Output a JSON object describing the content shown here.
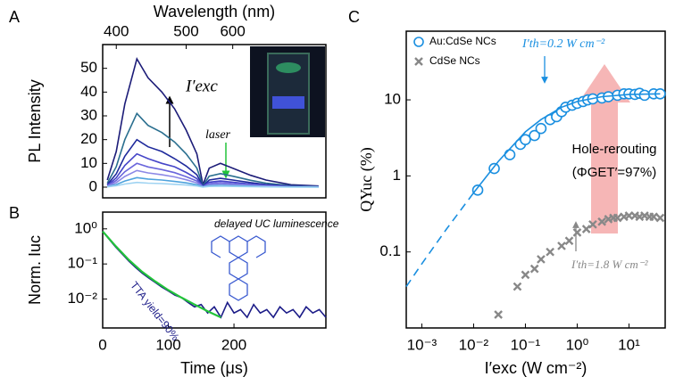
{
  "chart_data": [
    {
      "type": "line",
      "panel_label": "A",
      "xlabel": "Wavelength (nm)",
      "ylabel": "PL Intensity",
      "xscale": "reciprocal",
      "xlim": [
        385,
        1000
      ],
      "xticks": [
        400,
        500,
        600
      ],
      "ylim": [
        -4.5,
        60
      ],
      "yticks": [
        0,
        10,
        20,
        30,
        40,
        50
      ],
      "x": [
        390,
        400,
        410,
        425,
        440,
        460,
        480,
        500,
        520,
        532,
        545,
        570,
        600,
        650,
        700,
        800,
        950
      ],
      "series": [
        {
          "color": "#1c1c78",
          "values": [
            3,
            15,
            35,
            54,
            46,
            40,
            33,
            24,
            14,
            1,
            8,
            10,
            8,
            5,
            3,
            1,
            0.5
          ]
        },
        {
          "color": "#2a6f8f",
          "values": [
            1.7,
            8.6,
            20,
            31,
            26,
            23,
            19,
            14,
            8,
            0.6,
            4.6,
            5.7,
            4.6,
            2.9,
            1.7,
            0.6,
            0.3
          ]
        },
        {
          "color": "#1f2a9c",
          "values": [
            1.1,
            5.6,
            13,
            20,
            17,
            15,
            12,
            8.9,
            5.2,
            0.4,
            3,
            3.7,
            3,
            1.9,
            1.1,
            0.4,
            0.2
          ]
        },
        {
          "color": "#4545c8",
          "values": [
            0.8,
            3.9,
            9.1,
            14,
            12,
            10,
            8.6,
            6.2,
            3.6,
            0.3,
            2.1,
            2.6,
            2.1,
            1.3,
            0.8,
            0.3,
            0.1
          ]
        },
        {
          "color": "#6a66dc",
          "values": [
            0.6,
            2.8,
            6.5,
            10,
            8.5,
            7.4,
            6.1,
            4.4,
            2.6,
            0.2,
            1.5,
            1.9,
            1.5,
            0.9,
            0.6,
            0.2,
            0.1
          ]
        },
        {
          "color": "#8c88e6",
          "values": [
            0.4,
            1.9,
            4.5,
            7,
            6,
            5.2,
            4.3,
            3.1,
            1.8,
            0.1,
            1,
            1.3,
            1,
            0.7,
            0.4,
            0.1,
            0.1
          ]
        },
        {
          "color": "#4fa3dd",
          "values": [
            0.2,
            1.1,
            2.6,
            4,
            3.4,
            3,
            2.4,
            1.8,
            1,
            0.1,
            0.6,
            0.7,
            0.6,
            0.4,
            0.2,
            0.1,
            0
          ]
        },
        {
          "color": "#9fd3f2",
          "values": [
            0.1,
            0.6,
            1.3,
            2,
            1.7,
            1.5,
            1.2,
            0.9,
            0.5,
            0,
            0.3,
            0.4,
            0.3,
            0.2,
            0.1,
            0,
            0
          ]
        }
      ],
      "annotations": [
        {
          "text": "I′exc"
        },
        {
          "text": "laser"
        }
      ]
    },
    {
      "type": "line",
      "panel_label": "B",
      "xlabel": "Time (μs)",
      "ylabel": "Norm. Iuc",
      "yscale": "log",
      "xlim": [
        0,
        340
      ],
      "xticks": [
        0,
        100,
        200
      ],
      "ylim": [
        0.0015,
        3
      ],
      "yticks": [
        {
          "value": 1,
          "label": "10⁰"
        },
        {
          "value": 0.1,
          "label": "10⁻¹"
        },
        {
          "value": 0.01,
          "label": "10⁻²"
        }
      ],
      "series": [
        {
          "color": "#1c1c88",
          "x": [
            0,
            10,
            20,
            30,
            40,
            50,
            60,
            70,
            80,
            90,
            100,
            110,
            120,
            130,
            140,
            150,
            160,
            170,
            180,
            190,
            200,
            210,
            220,
            230,
            240,
            250,
            260,
            270,
            280,
            290,
            300,
            310,
            320,
            330,
            340
          ],
          "values": [
            0.85,
            0.5,
            0.3,
            0.19,
            0.12,
            0.08,
            0.055,
            0.04,
            0.03,
            0.022,
            0.017,
            0.013,
            0.011,
            0.008,
            0.006,
            0.007,
            0.004,
            0.006,
            0.003,
            0.008,
            0.004,
            0.005,
            0.003,
            0.007,
            0.004,
            0.005,
            0.003,
            0.006,
            0.004,
            0.005,
            0.003,
            0.006,
            0.004,
            0.005,
            0.003
          ]
        },
        {
          "color": "#22c33a",
          "x": [
            0,
            20,
            40,
            60,
            80,
            100,
            120,
            140,
            160,
            180
          ],
          "values": [
            0.85,
            0.32,
            0.13,
            0.06,
            0.032,
            0.018,
            0.011,
            0.007,
            0.0045,
            0.003
          ]
        }
      ],
      "annotations": [
        {
          "text": "delayed UC luminescence"
        },
        {
          "text": "TTA yield=90%"
        }
      ]
    },
    {
      "type": "scatter",
      "panel_label": "C",
      "xlabel": "I′exc (W cm⁻²)",
      "ylabel": "QYuc (%)",
      "xscale": "log",
      "yscale": "log",
      "xlim": [
        0.0005,
        50
      ],
      "ylim": [
        0.01,
        80
      ],
      "xticks": [
        {
          "value": 0.001,
          "label": "10⁻³"
        },
        {
          "value": 0.01,
          "label": "10⁻²"
        },
        {
          "value": 0.1,
          "label": "10⁻¹"
        },
        {
          "value": 1,
          "label": "10⁰"
        },
        {
          "value": 10,
          "label": "10¹"
        }
      ],
      "yticks": [
        0.1,
        1,
        10
      ],
      "series": [
        {
          "name": "Au:CdSe NCs",
          "color": "#1a8fe0",
          "marker": "circle",
          "x": [
            0.012,
            0.025,
            0.05,
            0.08,
            0.1,
            0.15,
            0.2,
            0.3,
            0.4,
            0.5,
            0.6,
            0.8,
            1,
            1.3,
            1.6,
            2,
            3,
            4,
            6,
            8,
            10,
            13,
            16,
            20,
            30,
            40
          ],
          "values": [
            0.65,
            1.25,
            1.9,
            2.6,
            3,
            3.4,
            4.2,
            5.5,
            6,
            7,
            8,
            8.5,
            9,
            9.5,
            10,
            10.3,
            10.6,
            11,
            11.5,
            12,
            12,
            11.8,
            12.2,
            11.5,
            12,
            12
          ]
        },
        {
          "name": "CdSe NCs",
          "color": "#888888",
          "marker": "x",
          "x": [
            0.03,
            0.07,
            0.1,
            0.15,
            0.2,
            0.3,
            0.5,
            0.7,
            1,
            1.5,
            2,
            3,
            4,
            5,
            6,
            8,
            10,
            13,
            16,
            20,
            25,
            30,
            40
          ],
          "values": [
            0.015,
            0.035,
            0.05,
            0.06,
            0.08,
            0.1,
            0.12,
            0.14,
            0.18,
            0.2,
            0.23,
            0.25,
            0.27,
            0.28,
            0.28,
            0.29,
            0.3,
            0.3,
            0.29,
            0.3,
            0.29,
            0.29,
            0.28
          ]
        },
        {
          "color": "#1a8fe0",
          "marker": "line",
          "dash": true,
          "x": [
            0.0005,
            0.001,
            0.003,
            0.01
          ],
          "values": [
            0.035,
            0.07,
            0.2,
            0.6
          ]
        },
        {
          "color": "#1a8fe0",
          "marker": "line",
          "x": [
            0.01,
            0.03,
            0.1,
            0.2,
            0.5,
            1,
            3,
            10,
            40
          ],
          "values": [
            0.6,
            1.55,
            3.8,
            5.5,
            8,
            9.5,
            11,
            11.8,
            12
          ]
        }
      ],
      "legend": "upper left",
      "annotations": [
        {
          "text": "I′th=0.2 W cm⁻²"
        },
        {
          "text": "I′th=1.8 W cm⁻²"
        },
        {
          "text": "Hole-rerouting"
        },
        {
          "text": "(ΦGET′=97%)"
        }
      ]
    }
  ]
}
